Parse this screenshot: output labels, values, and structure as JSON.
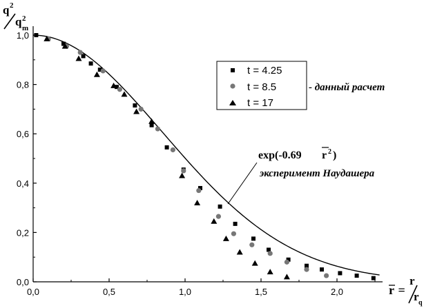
{
  "chart_data": {
    "type": "scatter",
    "xlim": [
      0.0,
      2.3
    ],
    "ylim": [
      0.0,
      1.05
    ],
    "x_ticks": [
      "0,0",
      "0,5",
      "1,0",
      "1,5",
      "2,0"
    ],
    "y_ticks": [
      "0,0",
      "0,2",
      "0,4",
      "0,6",
      "0,8",
      "1,0"
    ],
    "x_tick_values": [
      0.0,
      0.5,
      1.0,
      1.5,
      2.0
    ],
    "y_tick_values": [
      0.0,
      0.2,
      0.4,
      0.6,
      0.8,
      1.0
    ],
    "ylabel": {
      "numerator": "q",
      "numerator_sup": "2",
      "denominator": "q",
      "denominator_sub": "m",
      "denominator_sup": "2"
    },
    "xlabel": {
      "rbar": "r",
      "eq": " = ",
      "numerator": "r",
      "denominator": "r",
      "denominator_sub": "q"
    },
    "legend": {
      "title": "- данный расчет",
      "position": "top-right"
    },
    "series": [
      {
        "name": "t = 4.25",
        "marker": "square",
        "points": [
          [
            0.02,
            1.0
          ],
          [
            0.1,
            0.985
          ],
          [
            0.2,
            0.965
          ],
          [
            0.33,
            0.915
          ],
          [
            0.38,
            0.885
          ],
          [
            0.44,
            0.86
          ],
          [
            0.55,
            0.79
          ],
          [
            0.67,
            0.715
          ],
          [
            0.78,
            0.635
          ],
          [
            0.88,
            0.545
          ],
          [
            0.99,
            0.455
          ],
          [
            1.1,
            0.38
          ],
          [
            1.23,
            0.305
          ],
          [
            1.33,
            0.235
          ],
          [
            1.45,
            0.175
          ],
          [
            1.55,
            0.13
          ],
          [
            1.68,
            0.09
          ],
          [
            1.8,
            0.065
          ],
          [
            1.9,
            0.05
          ],
          [
            2.02,
            0.035
          ],
          [
            2.13,
            0.025
          ],
          [
            2.24,
            0.015
          ]
        ]
      },
      {
        "name": "t = 8.5",
        "marker": "circle",
        "points": [
          [
            0.1,
            0.985
          ],
          [
            0.22,
            0.955
          ],
          [
            0.31,
            0.93
          ],
          [
            0.46,
            0.855
          ],
          [
            0.57,
            0.78
          ],
          [
            0.71,
            0.7
          ],
          [
            0.82,
            0.62
          ],
          [
            0.92,
            0.535
          ],
          [
            0.99,
            0.45
          ],
          [
            1.09,
            0.37
          ],
          [
            1.22,
            0.265
          ],
          [
            1.32,
            0.195
          ],
          [
            1.44,
            0.15
          ],
          [
            1.56,
            0.115
          ],
          [
            1.67,
            0.08
          ],
          [
            1.8,
            0.05
          ],
          [
            1.93,
            0.025
          ]
        ]
      },
      {
        "name": "t = 17",
        "marker": "triangle",
        "points": [
          [
            0.09,
            0.985
          ],
          [
            0.21,
            0.955
          ],
          [
            0.3,
            0.905
          ],
          [
            0.42,
            0.84
          ],
          [
            0.53,
            0.795
          ],
          [
            0.6,
            0.76
          ],
          [
            0.68,
            0.69
          ],
          [
            0.78,
            0.65
          ],
          [
            0.98,
            0.43
          ],
          [
            1.08,
            0.32
          ],
          [
            1.19,
            0.245
          ],
          [
            1.27,
            0.175
          ],
          [
            1.36,
            0.12
          ],
          [
            1.46,
            0.075
          ],
          [
            1.56,
            0.04
          ],
          [
            1.67,
            0.02
          ]
        ]
      }
    ],
    "curve": {
      "formula_prefix": "exp(-0.69 ",
      "formula_var": "r",
      "formula_sup": "2",
      "formula_suffix": ")",
      "subtitle": "эксперимент Наудашера",
      "coefficient": 0.69,
      "x_range": [
        0.0,
        2.28
      ]
    }
  }
}
